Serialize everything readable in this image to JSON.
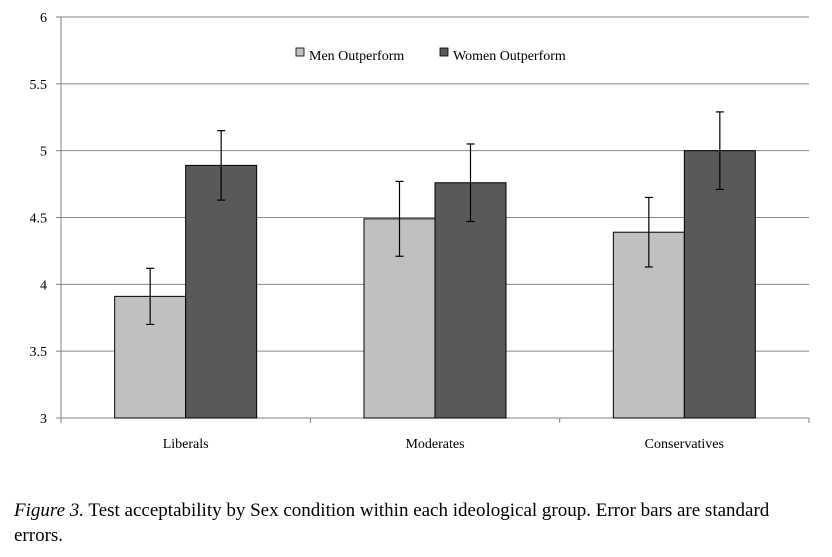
{
  "chart_data": {
    "type": "bar",
    "categories": [
      "Liberals",
      "Moderates",
      "Conservatives"
    ],
    "series": [
      {
        "name": "Men Outperform",
        "values": [
          3.91,
          4.49,
          4.39
        ],
        "errors": [
          0.21,
          0.28,
          0.26
        ],
        "color": "#c0c0c0"
      },
      {
        "name": "Women Outperform",
        "values": [
          4.89,
          4.76,
          5.0
        ],
        "errors": [
          0.26,
          0.29,
          0.29
        ],
        "color": "#595959"
      }
    ],
    "ylim": [
      3,
      6
    ],
    "yticks": [
      "3",
      "3.5",
      "4",
      "4.5",
      "5",
      "5.5",
      "6"
    ],
    "grid": true,
    "legend_position": "top-center"
  },
  "caption": {
    "label": "Figure 3.",
    "text": " Test acceptability by Sex condition within each ideological group. Error bars are standard errors."
  }
}
